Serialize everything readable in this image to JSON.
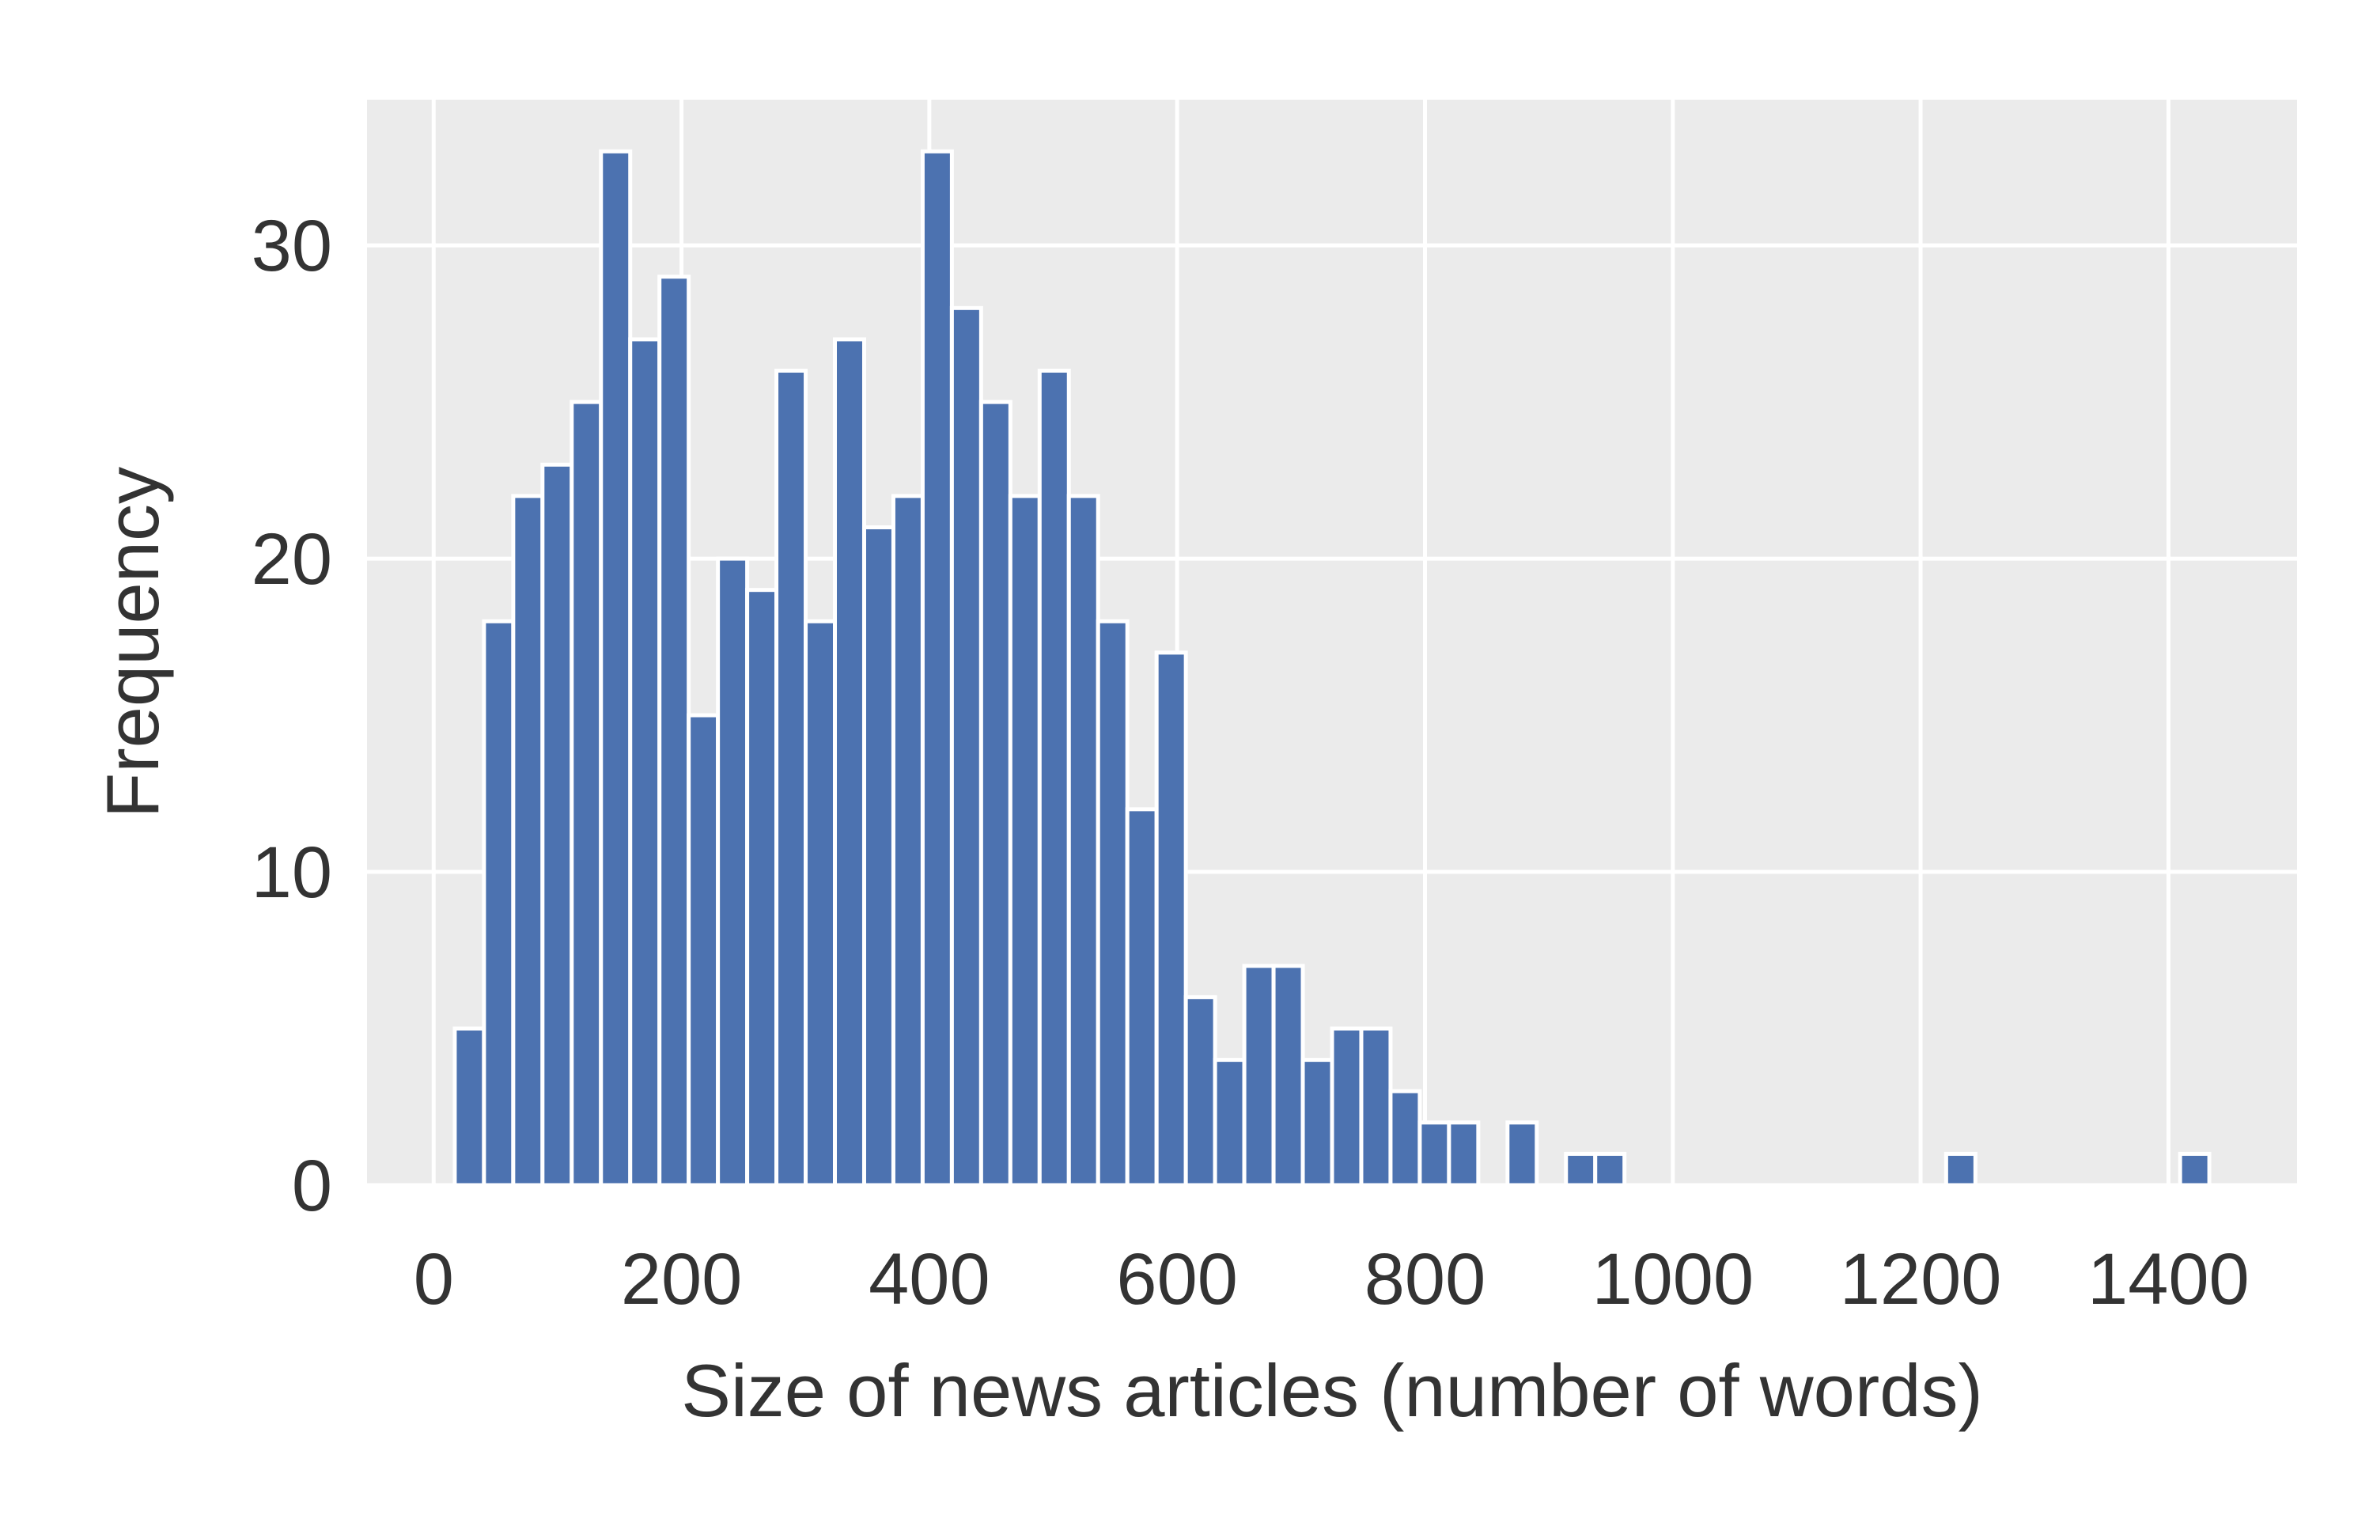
{
  "chart_data": {
    "type": "histogram",
    "x_label": "Size of news articles (number of words)",
    "y_label": "Frequency",
    "bins": [
      17,
      40.6,
      64.2,
      87.8,
      111.4,
      135,
      158.6,
      182.2,
      205.8,
      229.4,
      253,
      276.6,
      300.2,
      323.8,
      347.4,
      371,
      394.6,
      418.2,
      441.8,
      465.4,
      489,
      512.6,
      536.2,
      559.8,
      583.4,
      607,
      630.6,
      654.2,
      677.8,
      701.4,
      725,
      748.6,
      772.2,
      795.8,
      819.4,
      843,
      866.6,
      890.2,
      913.8,
      937.4,
      961,
      984.6,
      1008.2,
      1031.8,
      1055.4,
      1079,
      1102.6,
      1126.2,
      1149.8,
      1173.4,
      1197,
      1220.6,
      1244.2,
      1267.8,
      1291.4,
      1315,
      1338.6,
      1362.2,
      1385.8,
      1409.4,
      1433
    ],
    "counts": [
      5,
      18,
      22,
      23,
      25,
      33,
      27,
      29,
      15,
      20,
      19,
      26,
      18,
      27,
      21,
      22,
      33,
      28,
      25,
      22,
      26,
      22,
      18,
      12,
      17,
      6,
      4,
      7,
      7,
      4,
      5,
      5,
      3,
      2,
      2,
      0,
      2,
      0,
      1,
      1,
      0,
      0,
      0,
      0,
      0,
      0,
      0,
      0,
      0,
      0,
      0,
      1,
      0,
      0,
      0,
      0,
      0,
      0,
      0,
      1
    ],
    "color": "#4c72b0",
    "xlim": [
      -53.8,
      1503.8
    ],
    "ylim": [
      0,
      34.65
    ],
    "xticks": [
      0,
      200,
      400,
      600,
      800,
      1000,
      1200,
      1400
    ],
    "yticks": [
      0,
      10,
      20,
      30
    ],
    "grid": true
  }
}
